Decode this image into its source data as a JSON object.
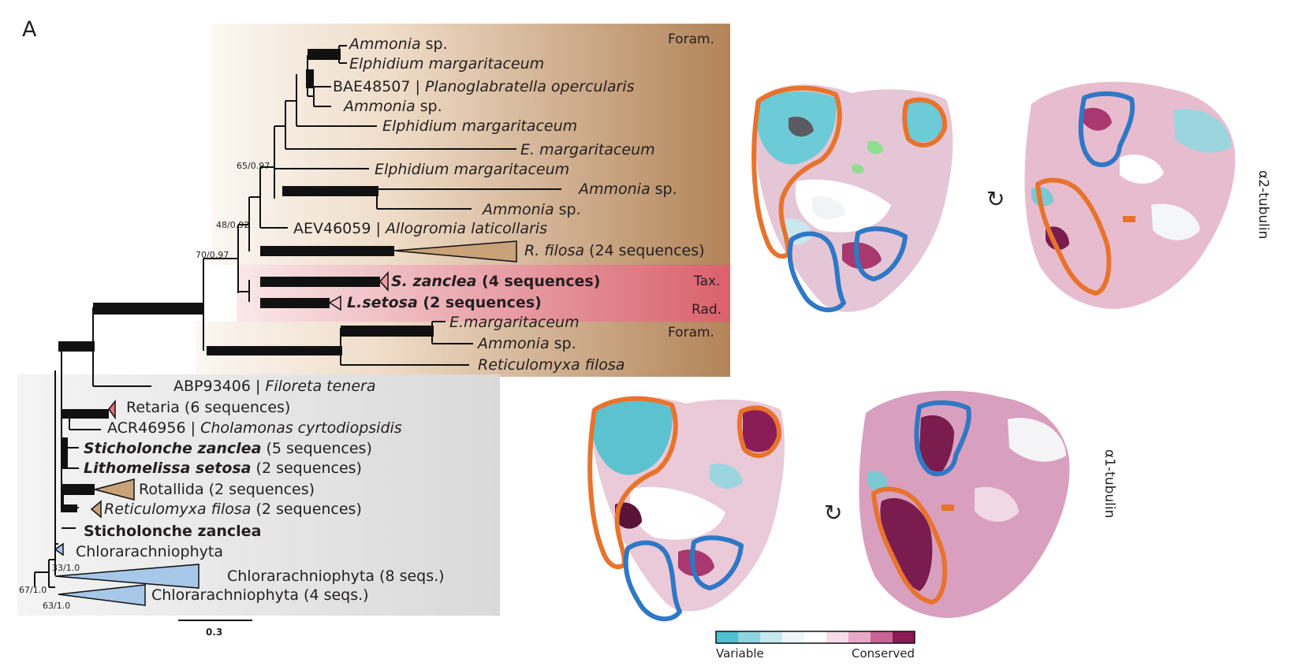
{
  "panel_letter": "A",
  "tree": {
    "group_labels": {
      "foram_top": "Foram.",
      "tax": "Tax.",
      "rad": "Rad.",
      "foram_bottom": "Foram."
    },
    "taxa": [
      {
        "id": "t1",
        "parts": [
          {
            "text": "Ammonia",
            "style": "it"
          },
          {
            "text": " sp.",
            "style": ""
          }
        ]
      },
      {
        "id": "t2",
        "parts": [
          {
            "text": "Elphidium margaritaceum",
            "style": "it"
          }
        ]
      },
      {
        "id": "t3",
        "parts": [
          {
            "text": "BAE48507 | ",
            "style": ""
          },
          {
            "text": "Planoglabratella opercularis",
            "style": "it"
          }
        ]
      },
      {
        "id": "t4",
        "parts": [
          {
            "text": "Ammonia",
            "style": "it"
          },
          {
            "text": " sp.",
            "style": ""
          }
        ]
      },
      {
        "id": "t5",
        "parts": [
          {
            "text": "Elphidium margaritaceum",
            "style": "it"
          }
        ]
      },
      {
        "id": "t6",
        "parts": [
          {
            "text": "E. margaritaceum",
            "style": "it"
          }
        ]
      },
      {
        "id": "t7",
        "parts": [
          {
            "text": "Elphidium margaritaceum",
            "style": "it"
          }
        ]
      },
      {
        "id": "t8",
        "parts": [
          {
            "text": "Ammonia",
            "style": "it"
          },
          {
            "text": " sp.",
            "style": ""
          }
        ]
      },
      {
        "id": "t9",
        "parts": [
          {
            "text": "Ammonia",
            "style": "it"
          },
          {
            "text": " sp.",
            "style": ""
          }
        ]
      },
      {
        "id": "t10",
        "parts": [
          {
            "text": "AEV46059 | ",
            "style": ""
          },
          {
            "text": "Allogromia laticollaris",
            "style": "it"
          }
        ]
      },
      {
        "id": "t11",
        "parts": [
          {
            "text": "R. filosa",
            "style": "it"
          },
          {
            "text": " (24 sequences)",
            "style": ""
          }
        ]
      },
      {
        "id": "t12",
        "parts": [
          {
            "text": "S. zanclea",
            "style": "it bd"
          },
          {
            "text": " (4  sequences)",
            "style": "bd"
          }
        ]
      },
      {
        "id": "t13",
        "parts": [
          {
            "text": "L.setosa",
            "style": "it bd"
          },
          {
            "text": " (2 sequences)",
            "style": "bd"
          }
        ]
      },
      {
        "id": "t14",
        "parts": [
          {
            "text": "E.margaritaceum",
            "style": "it"
          }
        ]
      },
      {
        "id": "t15",
        "parts": [
          {
            "text": "Ammonia",
            "style": "it"
          },
          {
            "text": " sp.",
            "style": ""
          }
        ]
      },
      {
        "id": "t16",
        "parts": [
          {
            "text": "Reticulomyxa filosa",
            "style": "it"
          }
        ]
      },
      {
        "id": "t17",
        "parts": [
          {
            "text": "ABP93406 | ",
            "style": ""
          },
          {
            "text": "Filoreta tenera",
            "style": "it"
          }
        ]
      },
      {
        "id": "t18",
        "parts": [
          {
            "text": "Retaria (6 sequences)",
            "style": ""
          }
        ]
      },
      {
        "id": "t19",
        "parts": [
          {
            "text": "ACR46956 | ",
            "style": ""
          },
          {
            "text": "Cholamonas cyrtodiopsidis",
            "style": "it"
          }
        ]
      },
      {
        "id": "t20",
        "parts": [
          {
            "text": "Sticholonche zanclea",
            "style": "it bd"
          },
          {
            "text": "  (5 sequences)",
            "style": ""
          }
        ]
      },
      {
        "id": "t21",
        "parts": [
          {
            "text": "Lithomelissa setosa",
            "style": "it bd"
          },
          {
            "text": " (2 sequences)",
            "style": ""
          }
        ]
      },
      {
        "id": "t22",
        "parts": [
          {
            "text": "Rotallida (2 sequences)",
            "style": ""
          }
        ]
      },
      {
        "id": "t23",
        "parts": [
          {
            "text": "Reticulomyxa filosa",
            "style": "it"
          },
          {
            "text": " (2 sequences)",
            "style": ""
          }
        ]
      },
      {
        "id": "t24",
        "parts": [
          {
            "text": "Sticholonche zanclea",
            "style": "bd"
          }
        ]
      },
      {
        "id": "t25",
        "parts": [
          {
            "text": "Chlorarachniophyta",
            "style": ""
          }
        ]
      },
      {
        "id": "t26",
        "parts": [
          {
            "text": "Chlorarachniophyta (8 seqs.)",
            "style": ""
          }
        ]
      },
      {
        "id": "t27",
        "parts": [
          {
            "text": "Chlorarachniophyta (4 seqs.)",
            "style": ""
          }
        ]
      }
    ],
    "support_values": [
      "65/0.97",
      "48/0.92",
      "70/0.97",
      "33/1.0",
      "67/1.0",
      "63/1.0"
    ],
    "scale_bar_label": "0.3"
  },
  "structures": {
    "label_alpha2": "α2-tubulin",
    "label_alpha1": "α1-tubulin"
  },
  "color_scale": {
    "left_label": "Variable",
    "right_label": "Conserved",
    "colors": [
      "#4fc0cf",
      "#8fd3df",
      "#c6e8ef",
      "#eef6f8",
      "#ffffff",
      "#f4dde8",
      "#e7a9c8",
      "#c86598",
      "#8a1b55"
    ]
  },
  "colors": {
    "foram_box_left": "#f8f1ea",
    "foram_box_right": "#b28459",
    "rad_box_left": "#f7dde0",
    "rad_box_right": "#d85d68",
    "gray_box": "#e6e6e6",
    "orange_outline": "#e8732c",
    "blue_outline": "#2f78c5"
  }
}
